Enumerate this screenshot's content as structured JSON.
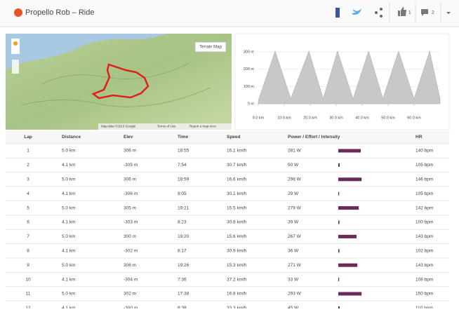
{
  "header": {
    "title": "Propello Rob – Ride",
    "likes": "1",
    "comments": "2"
  },
  "map": {
    "type_button": "Terrain Map",
    "attribution": "Map data ©2013 Google",
    "terms": "Terms of Use",
    "report": "Report a map error"
  },
  "elevation_chart": {
    "type": "area",
    "color": "#c8c8c8",
    "x": [
      0,
      6.5,
      12.5,
      19.5,
      25,
      30.5,
      36.5,
      42.5,
      48,
      54,
      60,
      66,
      70
    ],
    "values": [
      20,
      305,
      30,
      305,
      30,
      305,
      30,
      305,
      30,
      305,
      30,
      305,
      30
    ],
    "xlim": [
      0,
      70
    ],
    "ylim": [
      0,
      350
    ],
    "xticks": [
      {
        "value": 0,
        "label": "0.0 km"
      },
      {
        "value": 10,
        "label": "10.0 km"
      },
      {
        "value": 20,
        "label": "20.0 km"
      },
      {
        "value": 30,
        "label": "30.0 km"
      },
      {
        "value": 40,
        "label": "40.0 km"
      },
      {
        "value": 50,
        "label": "50.0 km"
      },
      {
        "value": 60,
        "label": "60.0 km"
      }
    ],
    "yticks": [
      {
        "value": 0,
        "label": "0 m"
      },
      {
        "value": 100,
        "label": "100 m"
      },
      {
        "value": 200,
        "label": "200 m"
      },
      {
        "value": 300,
        "label": "300 m"
      }
    ]
  },
  "table": {
    "columns": [
      "Lap",
      "Distance",
      "Elev",
      "Time",
      "Speed",
      "Power / Effort / Intensity",
      "HR"
    ],
    "rows": [
      [
        "1",
        "5.0 km",
        "306 m",
        "18:55",
        "16.1 km/h",
        "281 W",
        "140 bpm"
      ],
      [
        "2",
        "4.1 km",
        "-305 m",
        "7:54",
        "30.7 km/h",
        "50 W",
        "105 bpm"
      ],
      [
        "3",
        "5.0 km",
        "306 m",
        "18:59",
        "16.6 km/h",
        "298 W",
        "146 bpm"
      ],
      [
        "4",
        "4.1 km",
        "-306 m",
        "8:05",
        "30.1 km/h",
        "29 W",
        "105 bpm"
      ],
      [
        "5",
        "5.0 km",
        "305 m",
        "19:21",
        "15.5 km/h",
        "279 W",
        "142 bpm"
      ],
      [
        "6",
        "4.1 km",
        "-303 m",
        "8:23",
        "30.8 km/h",
        "39 W",
        "100 bpm"
      ],
      [
        "7",
        "5.0 km",
        "300 m",
        "19:20",
        "15.6 km/h",
        "267 W",
        "143 bpm"
      ],
      [
        "8",
        "4.1 km",
        "-302 m",
        "8:17",
        "30.9 km/h",
        "36 W",
        "102 bpm"
      ],
      [
        "9",
        "5.0 km",
        "306 m",
        "19:26",
        "15.3 km/h",
        "271 W",
        "143 bpm"
      ],
      [
        "10",
        "4.1 km",
        "-304 m",
        "7:36",
        "37.2 km/h",
        "33 W",
        "108 bpm"
      ],
      [
        "11",
        "5.0 km",
        "302 m",
        "17:38",
        "16.8 km/h",
        "293 W",
        "150 bpm"
      ],
      [
        "12",
        "4.1 km",
        "-300 m",
        "8:38",
        "33.3 km/h",
        "45 W",
        "110 bpm"
      ]
    ],
    "intensity": [
      0.8,
      0.05,
      0.83,
      0.03,
      0.73,
      0.04,
      0.65,
      0.04,
      0.68,
      0.03,
      0.83,
      0.05
    ],
    "intensity_color": "#6b2a5c"
  }
}
